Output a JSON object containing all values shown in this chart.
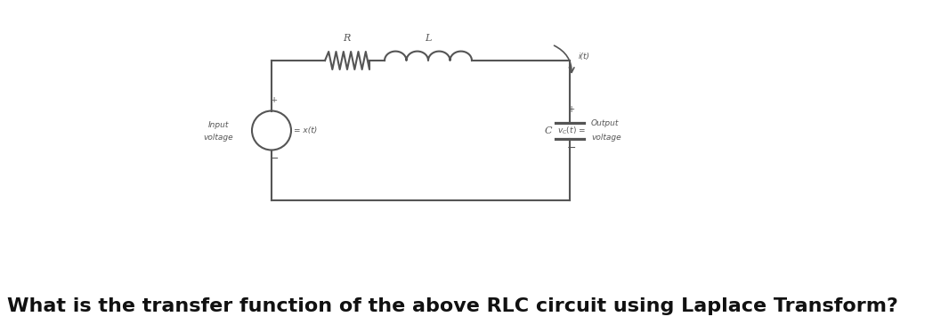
{
  "bg_color": "#ffffff",
  "circuit_color": "#555555",
  "question_text": "What is the transfer function of the above RLC circuit using Laplace Transform?",
  "question_fontsize": 16,
  "label_fontsize": 9,
  "small_fontsize": 7,
  "R_label": "R",
  "L_label": "L",
  "i_label": "i(t)",
  "C_label": "C",
  "input_line1": "Input",
  "input_line2": "voltage",
  "x_label": "= x(t)",
  "output_line1": "Output",
  "output_line2": "voltage",
  "vc_label": "v_C(t) =",
  "plus_label": "+",
  "minus_label": "−"
}
